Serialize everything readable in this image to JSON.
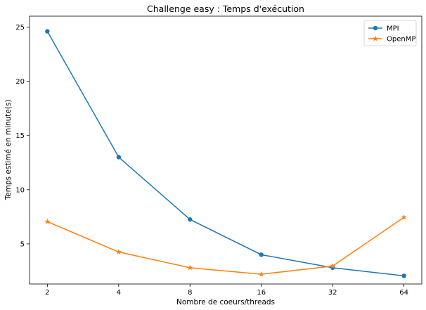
{
  "chart_data": {
    "type": "line",
    "title": "Challenge easy : Temps d'exécution",
    "xlabel": "Nombre de coeurs/threads",
    "ylabel": "Temps estimé en minute(s)",
    "x_scale": "log2",
    "categories": [
      "2",
      "4",
      "8",
      "16",
      "32",
      "64"
    ],
    "x": [
      2,
      4,
      8,
      16,
      32,
      64
    ],
    "yticks": [
      5,
      10,
      15,
      20,
      25
    ],
    "ylim": [
      1.3,
      26
    ],
    "grid": false,
    "legend_position": "top-right",
    "series": [
      {
        "name": "MPI",
        "values": [
          24.6,
          13.0,
          7.25,
          4.0,
          2.8,
          2.05
        ],
        "color": "#1f77b4",
        "marker": "circle"
      },
      {
        "name": "OpenMP",
        "values": [
          7.05,
          4.25,
          2.8,
          2.2,
          2.95,
          7.45
        ],
        "color": "#ff7f0e",
        "marker": "star"
      }
    ]
  }
}
